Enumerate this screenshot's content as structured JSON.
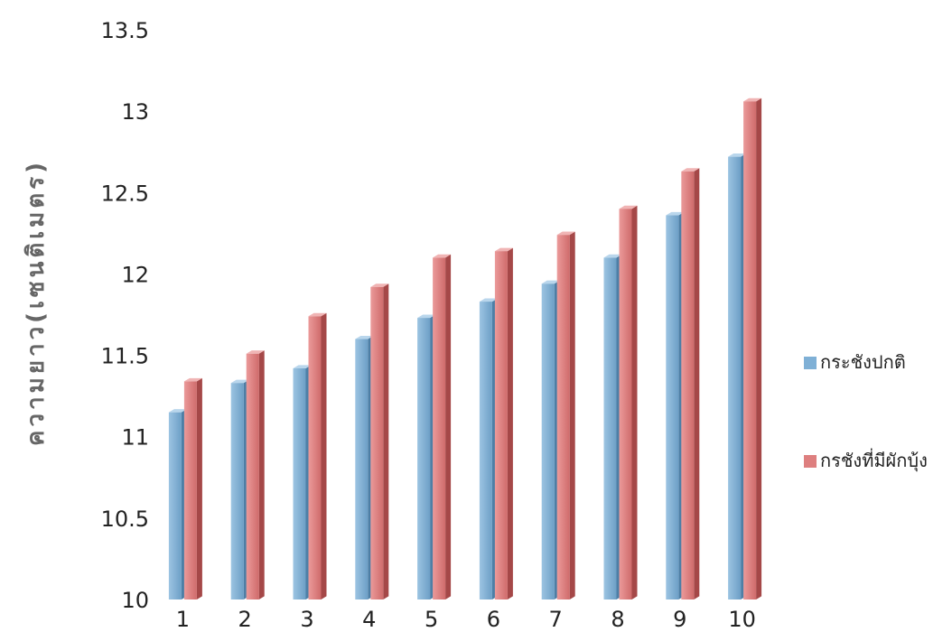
{
  "chart_data": {
    "type": "bar",
    "ylabel": "ความยาว(เซนติเมตร)",
    "xlabel": "",
    "categories": [
      "1",
      "2",
      "3",
      "4",
      "5",
      "6",
      "7",
      "8",
      "9",
      "10"
    ],
    "series": [
      {
        "name": "กระชังปกติ",
        "color": "#7fb0d6",
        "values": [
          11.15,
          11.33,
          11.42,
          11.6,
          11.73,
          11.83,
          11.94,
          12.1,
          12.36,
          12.72
        ]
      },
      {
        "name": "กรชังที่มีผักบุ้ง",
        "color": "#de7f7f",
        "values": [
          11.34,
          11.51,
          11.74,
          11.92,
          12.1,
          12.14,
          12.24,
          12.4,
          12.63,
          13.06
        ]
      }
    ],
    "ylim": [
      10,
      13.5
    ],
    "yticks": [
      "10",
      "10.5",
      "11",
      "11.5",
      "12",
      "12.5",
      "13",
      "13.5"
    ],
    "grid": false,
    "legend_position": "right"
  }
}
